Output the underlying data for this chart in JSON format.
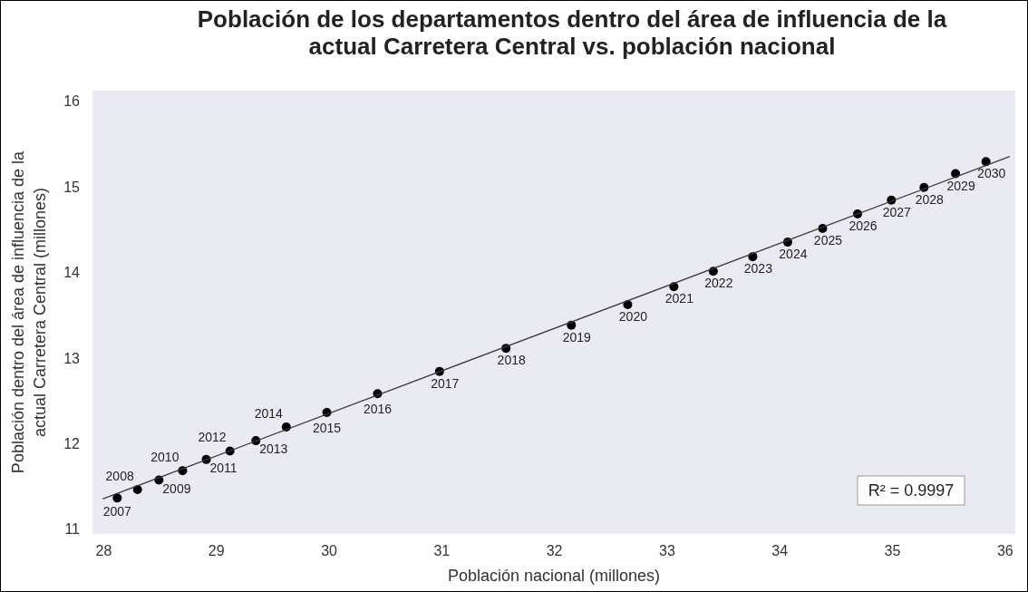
{
  "chart_data": {
    "type": "scatter",
    "title": "Población de los departamentos dentro del área de influencia de la\nactual Carretera Central vs. población nacional",
    "xlabel": "Población nacional (millones)",
    "ylabel": "Población dentro del área de influencia de la\nactual Carretera Central (millones)",
    "xlim": [
      27.9,
      36.09
    ],
    "xticks": [
      28,
      29,
      30,
      31,
      32,
      33,
      34,
      35,
      36
    ],
    "ylim": [
      10.94,
      16.12
    ],
    "yticks": [
      11,
      12,
      13,
      14,
      15,
      16
    ],
    "grid": false,
    "series": [
      {
        "marker": "circle",
        "color": "#000000",
        "x": [
          28.12,
          28.3,
          28.49,
          28.7,
          28.91,
          29.12,
          29.35,
          29.62,
          29.98,
          30.43,
          30.98,
          31.57,
          32.15,
          32.65,
          33.06,
          33.41,
          33.76,
          34.07,
          34.38,
          34.69,
          34.99,
          35.28,
          35.56,
          35.83
        ],
        "values": [
          11.36,
          11.46,
          11.57,
          11.68,
          11.81,
          11.91,
          12.03,
          12.19,
          12.36,
          12.58,
          12.84,
          13.11,
          13.38,
          13.62,
          13.83,
          14.01,
          14.18,
          14.35,
          14.51,
          14.68,
          14.84,
          14.99,
          15.15,
          15.29
        ]
      },
      {
        "type": "line",
        "marker": "none",
        "color": "#3a3a3a",
        "x": [
          27.99,
          36.04
        ],
        "values": [
          11.35,
          15.35
        ]
      }
    ],
    "annotations": [
      {
        "text": "2007",
        "x": 28.12,
        "y": 11.36
      },
      {
        "text": "2008",
        "x": 28.3,
        "y": 11.46
      },
      {
        "text": "2009",
        "x": 28.49,
        "y": 11.57
      },
      {
        "text": "2010",
        "x": 28.7,
        "y": 11.68
      },
      {
        "text": "2011",
        "x": 28.91,
        "y": 11.81
      },
      {
        "text": "2012",
        "x": 29.12,
        "y": 11.91
      },
      {
        "text": "2013",
        "x": 29.35,
        "y": 12.03
      },
      {
        "text": "2014",
        "x": 29.62,
        "y": 12.19
      },
      {
        "text": "2015",
        "x": 29.98,
        "y": 12.36
      },
      {
        "text": "2016",
        "x": 30.43,
        "y": 12.58
      },
      {
        "text": "2017",
        "x": 30.98,
        "y": 12.84
      },
      {
        "text": "2018",
        "x": 31.57,
        "y": 13.11
      },
      {
        "text": "2019",
        "x": 32.15,
        "y": 13.38
      },
      {
        "text": "2020",
        "x": 32.65,
        "y": 13.62
      },
      {
        "text": "2021",
        "x": 33.06,
        "y": 13.83
      },
      {
        "text": "2022",
        "x": 33.41,
        "y": 14.01
      },
      {
        "text": "2023",
        "x": 33.76,
        "y": 14.18
      },
      {
        "text": "2024",
        "x": 34.07,
        "y": 14.35
      },
      {
        "text": "2025",
        "x": 34.38,
        "y": 14.51
      },
      {
        "text": "2026",
        "x": 34.69,
        "y": 14.68
      },
      {
        "text": "2027",
        "x": 34.99,
        "y": 14.84
      },
      {
        "text": "2028",
        "x": 35.28,
        "y": 14.99
      },
      {
        "text": "2029",
        "x": 35.56,
        "y": 15.15
      },
      {
        "text": "2030",
        "x": 35.83,
        "y": 15.29
      },
      "R² = 0.9997"
    ]
  }
}
